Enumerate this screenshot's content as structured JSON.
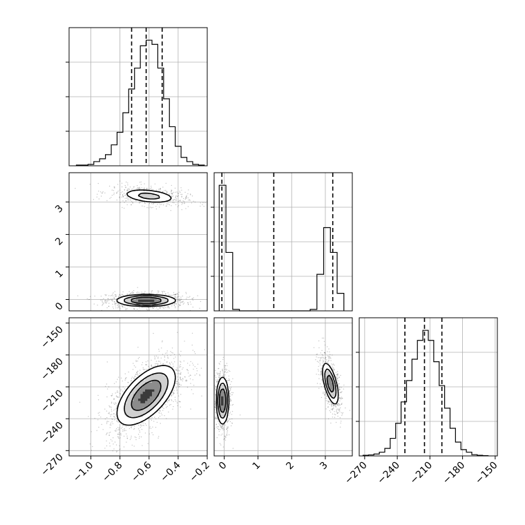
{
  "chart_data": {
    "type": "corner",
    "title": "",
    "parameters": [
      "",
      "",
      ""
    ],
    "grid": true,
    "panels": [
      {
        "row": 0,
        "col": 0,
        "type": "histogram",
        "param": 0,
        "xlim": [
          -1.15,
          -0.2
        ],
        "ylim": [
          0,
          1.0
        ],
        "bin_centers": [
          -1.08,
          -1.04,
          -1.0,
          -0.96,
          -0.92,
          -0.88,
          -0.84,
          -0.8,
          -0.76,
          -0.72,
          -0.68,
          -0.64,
          -0.6,
          -0.56,
          -0.52,
          -0.48,
          -0.44,
          -0.4,
          -0.36,
          -0.32,
          -0.28,
          -0.24
        ],
        "counts": [
          0.005,
          0.005,
          0.01,
          0.03,
          0.05,
          0.08,
          0.15,
          0.24,
          0.38,
          0.55,
          0.7,
          0.86,
          0.9,
          0.87,
          0.7,
          0.48,
          0.28,
          0.14,
          0.06,
          0.03,
          0.01,
          0.005
        ],
        "quantiles": [
          -0.72,
          -0.62,
          -0.51
        ]
      },
      {
        "row": 1,
        "col": 1,
        "type": "histogram",
        "param": 1,
        "xlim": [
          -0.3,
          3.8
        ],
        "ylim": [
          0,
          1.0
        ],
        "bin_centers": [
          -0.05,
          0.15,
          0.35,
          2.65,
          2.85,
          3.05,
          3.25,
          3.45
        ],
        "counts": [
          0.86,
          0.4,
          0.01,
          0.01,
          0.25,
          0.57,
          0.4,
          0.12
        ],
        "quantiles": [
          -0.07,
          1.47,
          3.22
        ]
      },
      {
        "row": 2,
        "col": 2,
        "type": "histogram",
        "param": 2,
        "xlim": [
          -275,
          -148
        ],
        "ylim": [
          0,
          1.0
        ],
        "bin_centers": [
          -269,
          -264,
          -259,
          -254,
          -249,
          -244,
          -239,
          -234,
          -229,
          -224,
          -219,
          -214,
          -209,
          -204,
          -199,
          -194,
          -189,
          -184,
          -179,
          -174,
          -169,
          -164,
          -159
        ],
        "counts": [
          0.005,
          0.008,
          0.015,
          0.03,
          0.06,
          0.14,
          0.26,
          0.43,
          0.6,
          0.77,
          0.92,
          1.0,
          0.92,
          0.75,
          0.56,
          0.38,
          0.22,
          0.11,
          0.05,
          0.03,
          0.01,
          0.005,
          0.002
        ],
        "quantiles": [
          -233,
          -215,
          -199
        ]
      },
      {
        "row": 1,
        "col": 0,
        "type": "contour2d",
        "xlim": [
          -1.15,
          -0.2
        ],
        "ylim": [
          -0.35,
          3.9
        ],
        "modes": [
          {
            "center": [
              -0.62,
              -0.03
            ],
            "sx": 0.1,
            "sy": 0.09,
            "rho": 0.0,
            "weight": 0.65
          },
          {
            "center": [
              -0.6,
              3.18
            ],
            "sx": 0.1,
            "sy": 0.12,
            "rho": -0.35,
            "weight": 0.35
          }
        ]
      },
      {
        "row": 2,
        "col": 0,
        "type": "contour2d",
        "xlim": [
          -1.15,
          -0.2
        ],
        "ylim": [
          -275,
          -145
        ],
        "modes": [
          {
            "center": [
              -0.62,
              -218
            ],
            "sx": 0.1,
            "sy": 14,
            "rho": 0.6,
            "weight": 1.0
          }
        ]
      },
      {
        "row": 2,
        "col": 1,
        "type": "contour2d",
        "xlim": [
          -0.3,
          3.8
        ],
        "ylim": [
          -275,
          -145
        ],
        "modes": [
          {
            "center": [
              -0.05,
              -223
            ],
            "sx": 0.09,
            "sy": 11,
            "rho": 0.0,
            "weight": 0.5
          },
          {
            "center": [
              3.15,
              -207
            ],
            "sx": 0.12,
            "sy": 10,
            "rho": -0.6,
            "weight": 0.5
          }
        ]
      }
    ],
    "tick_labels": {
      "col0_x": [
        "−1.0",
        "−0.8",
        "−0.6",
        "−0.4",
        "−0.2"
      ],
      "col0_x_values": [
        -1.0,
        -0.8,
        -0.6,
        -0.4,
        -0.2
      ],
      "col1_x": [
        "0",
        "1",
        "2",
        "3"
      ],
      "col1_x_values": [
        0,
        1,
        2,
        3
      ],
      "col2_x": [
        "−270",
        "−240",
        "−210",
        "−180",
        "−150"
      ],
      "col2_x_values": [
        -270,
        -240,
        -210,
        -180,
        -150
      ],
      "row1_y": [
        "0",
        "1",
        "2",
        "3"
      ],
      "row1_y_values": [
        0,
        1,
        2,
        3
      ],
      "row2_y": [
        "−270",
        "−240",
        "−210",
        "−180",
        "−150"
      ],
      "row2_y_values": [
        -270,
        -240,
        -210,
        -180,
        -150
      ]
    },
    "colors": {
      "line": "#000000",
      "grid": "#b0b0b0",
      "points": "#555555"
    }
  }
}
